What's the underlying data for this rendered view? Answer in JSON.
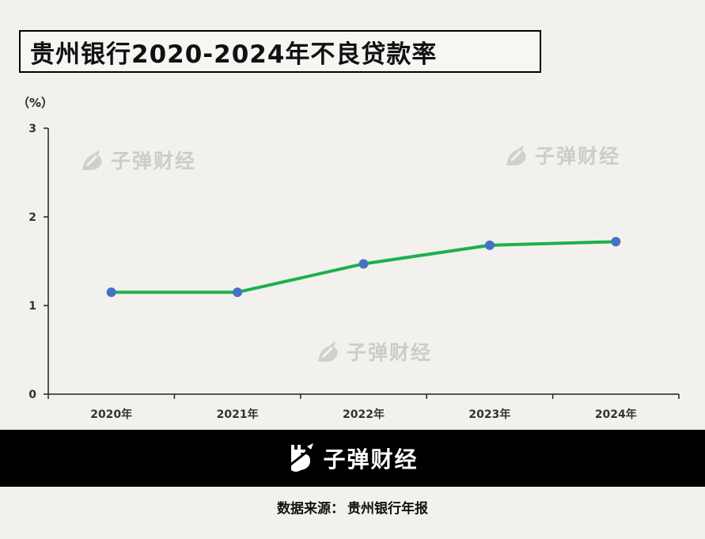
{
  "title": "贵州银行2020-2024年不良贷款率",
  "unit_label": "（%）",
  "watermark_text": "子弹财经",
  "brand": {
    "name": "子弹财经"
  },
  "source": {
    "label": "数据来源：",
    "value": "贵州银行年报"
  },
  "colors": {
    "line": "#1db04b",
    "marker": "#4472c4",
    "footer_bg": "#000000"
  },
  "chart_data": {
    "type": "line",
    "categories": [
      "2020年",
      "2021年",
      "2022年",
      "2023年",
      "2024年"
    ],
    "series": [
      {
        "values": [
          1.15,
          1.15,
          1.47,
          1.68,
          1.72
        ]
      }
    ],
    "ylim": [
      0,
      3
    ],
    "yticks": [
      0,
      1,
      2,
      3
    ],
    "title": "贵州银行2020-2024年不良贷款率",
    "xlabel": "",
    "ylabel": "（%）",
    "grid": false,
    "legend": "none"
  }
}
